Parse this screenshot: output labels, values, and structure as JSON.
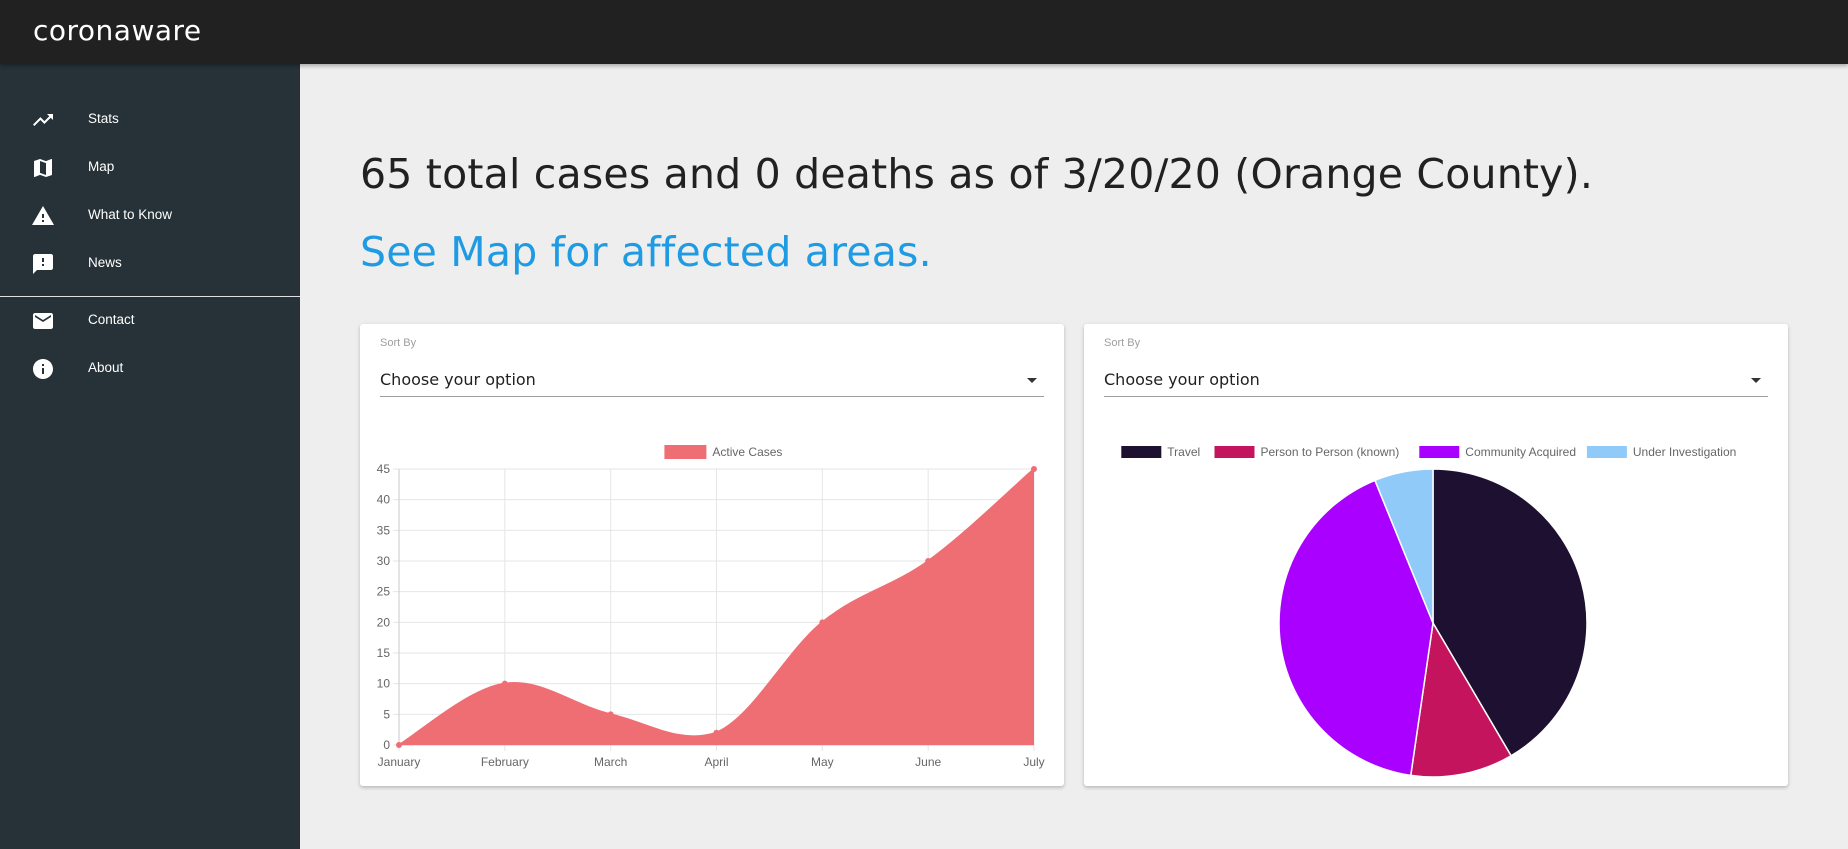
{
  "app": {
    "title": "coronaware"
  },
  "sidebar": {
    "items": [
      {
        "label": "Stats",
        "icon": "trending-up-icon"
      },
      {
        "label": "Map",
        "icon": "map-icon"
      },
      {
        "label": "What to Know",
        "icon": "warning-icon"
      },
      {
        "label": "News",
        "icon": "feedback-icon"
      },
      {
        "label": "Contact",
        "icon": "email-icon"
      },
      {
        "label": "About",
        "icon": "info-icon"
      }
    ]
  },
  "main": {
    "headline": "65 total cases and 0 deaths as of 3/20/20 (Orange County).",
    "subline": "See Map for affected areas."
  },
  "cards": [
    {
      "sort_label": "Sort By",
      "select_value": "Choose your option"
    },
    {
      "sort_label": "Sort By",
      "select_value": "Choose your option"
    }
  ],
  "colors": {
    "topbar": "#212121",
    "sidebar": "#263238",
    "link": "#1e9be3",
    "area_fill": "#ef6e73"
  },
  "chart_data": [
    {
      "type": "area",
      "categories": [
        "January",
        "February",
        "March",
        "April",
        "May",
        "June",
        "July"
      ],
      "series": [
        {
          "name": "Active Cases",
          "values": [
            0,
            10,
            5,
            2,
            20,
            30,
            45
          ],
          "color": "#ef6e73"
        }
      ],
      "ylim": [
        0,
        45
      ],
      "yticks": [
        0,
        5,
        10,
        15,
        20,
        25,
        30,
        35,
        40,
        45
      ],
      "grid": true,
      "legend": "top"
    },
    {
      "type": "pie",
      "categories": [
        "Travel",
        "Person to Person (known)",
        "Community Acquired",
        "Under Investigation"
      ],
      "values": [
        27,
        7,
        27,
        4
      ],
      "colors": [
        "#1d1030",
        "#c4145e",
        "#aa00ff",
        "#90caf9"
      ],
      "legend": "top"
    }
  ]
}
